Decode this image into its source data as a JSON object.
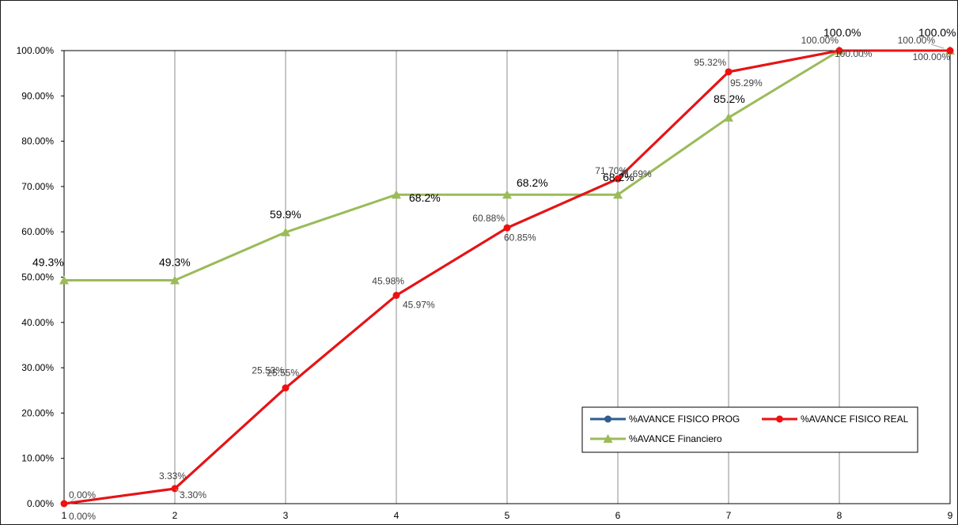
{
  "chart_data": {
    "type": "line",
    "x": [
      1,
      2,
      3,
      4,
      5,
      6,
      7,
      8,
      9
    ],
    "ylim": [
      0,
      100
    ],
    "y_ticks": [
      "0.00%",
      "10.00%",
      "20.00%",
      "30.00%",
      "40.00%",
      "50.00%",
      "60.00%",
      "70.00%",
      "80.00%",
      "90.00%",
      "100.00%"
    ],
    "x_ticks": [
      "1",
      "2",
      "3",
      "4",
      "5",
      "6",
      "7",
      "8",
      "9"
    ],
    "grid": "vertical",
    "legend_position": "bottom-right",
    "series": [
      {
        "name": "%AVANCE FISICO PROG",
        "color": "#2e5d8e",
        "marker": "circle",
        "values": [
          0.0,
          3.3,
          25.53,
          45.97,
          60.85,
          71.69,
          95.29,
          100.0,
          100.0
        ],
        "labels": [
          "0.00%",
          "3.30%",
          "25.53%",
          "45.97%",
          "60.85%",
          "71.69%",
          "95.29%",
          "100.00%",
          "100.00%"
        ]
      },
      {
        "name": "%AVANCE FISICO REAL",
        "color": "#ee1111",
        "marker": "circle",
        "values": [
          0.0,
          3.33,
          25.55,
          45.98,
          60.88,
          71.7,
          95.32,
          100.0,
          100.0
        ],
        "labels": [
          "0.00%",
          "3.33%",
          "25.55%",
          "45.98%",
          "60.88%",
          "71.70%",
          "95.32%",
          "100.00%",
          "100.00%"
        ]
      },
      {
        "name": "%AVANCE Financiero",
        "color": "#9bbb59",
        "marker": "triangle",
        "values": [
          49.3,
          49.3,
          59.9,
          68.2,
          68.2,
          68.2,
          85.2,
          100.0,
          100.0
        ],
        "labels": [
          "49.3%",
          "49.3%",
          "59.9%",
          "68.2%",
          "68.2%",
          "68.2%",
          "85.2%",
          "100.0%",
          "100.0%"
        ]
      }
    ]
  }
}
